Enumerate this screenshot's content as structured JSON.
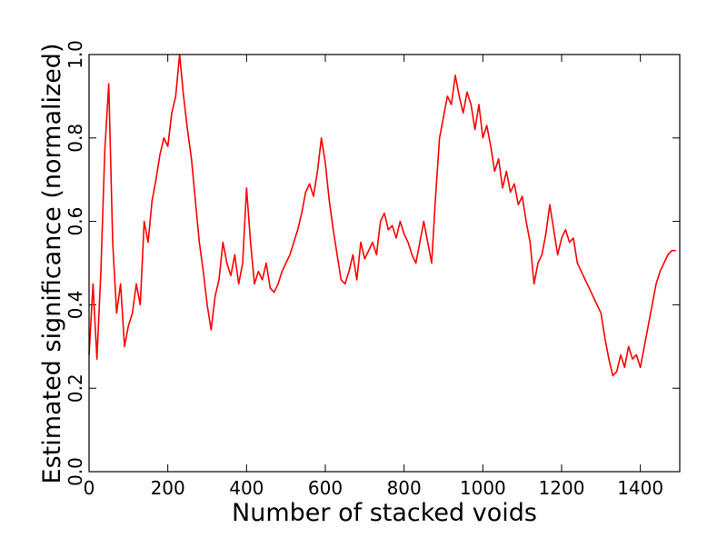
{
  "chart_data": {
    "type": "line",
    "xlabel": "Number of stacked voids",
    "ylabel": "Estimated significance (normalized)",
    "color": "#ff0000",
    "x": [
      0,
      10,
      20,
      30,
      40,
      50,
      60,
      70,
      80,
      90,
      100,
      110,
      120,
      130,
      140,
      150,
      160,
      170,
      180,
      190,
      200,
      210,
      220,
      230,
      240,
      250,
      260,
      270,
      280,
      290,
      300,
      310,
      320,
      330,
      340,
      350,
      360,
      370,
      380,
      390,
      400,
      410,
      420,
      430,
      440,
      450,
      460,
      470,
      480,
      490,
      500,
      510,
      520,
      530,
      540,
      550,
      560,
      570,
      580,
      590,
      600,
      610,
      620,
      630,
      640,
      650,
      660,
      670,
      680,
      690,
      700,
      710,
      720,
      730,
      740,
      750,
      760,
      770,
      780,
      790,
      800,
      810,
      820,
      830,
      840,
      850,
      860,
      870,
      880,
      890,
      900,
      910,
      920,
      930,
      940,
      950,
      960,
      970,
      980,
      990,
      1000,
      1010,
      1020,
      1030,
      1040,
      1050,
      1060,
      1070,
      1080,
      1090,
      1100,
      1110,
      1120,
      1130,
      1140,
      1150,
      1160,
      1170,
      1180,
      1190,
      1200,
      1210,
      1220,
      1230,
      1240,
      1250,
      1260,
      1270,
      1280,
      1290,
      1300,
      1310,
      1320,
      1330,
      1340,
      1350,
      1360,
      1370,
      1380,
      1390,
      1400,
      1410,
      1420,
      1430,
      1440,
      1450,
      1460,
      1470,
      1480,
      1490
    ],
    "values": [
      0.28,
      0.45,
      0.27,
      0.48,
      0.77,
      0.93,
      0.55,
      0.38,
      0.45,
      0.3,
      0.35,
      0.38,
      0.45,
      0.4,
      0.6,
      0.55,
      0.65,
      0.7,
      0.76,
      0.8,
      0.78,
      0.86,
      0.9,
      1.0,
      0.9,
      0.82,
      0.75,
      0.65,
      0.55,
      0.48,
      0.4,
      0.34,
      0.42,
      0.46,
      0.55,
      0.5,
      0.47,
      0.52,
      0.45,
      0.5,
      0.68,
      0.55,
      0.45,
      0.48,
      0.46,
      0.5,
      0.44,
      0.43,
      0.45,
      0.48,
      0.5,
      0.52,
      0.55,
      0.58,
      0.62,
      0.67,
      0.69,
      0.66,
      0.72,
      0.8,
      0.74,
      0.65,
      0.58,
      0.52,
      0.46,
      0.45,
      0.48,
      0.52,
      0.46,
      0.55,
      0.51,
      0.53,
      0.55,
      0.52,
      0.6,
      0.62,
      0.58,
      0.59,
      0.56,
      0.6,
      0.57,
      0.55,
      0.52,
      0.5,
      0.55,
      0.6,
      0.55,
      0.5,
      0.66,
      0.8,
      0.85,
      0.9,
      0.88,
      0.95,
      0.9,
      0.86,
      0.91,
      0.88,
      0.82,
      0.88,
      0.8,
      0.83,
      0.78,
      0.72,
      0.75,
      0.68,
      0.72,
      0.67,
      0.69,
      0.64,
      0.66,
      0.6,
      0.55,
      0.45,
      0.5,
      0.52,
      0.57,
      0.64,
      0.58,
      0.52,
      0.56,
      0.58,
      0.55,
      0.56,
      0.5,
      0.48,
      0.46,
      0.44,
      0.42,
      0.4,
      0.38,
      0.32,
      0.27,
      0.23,
      0.24,
      0.28,
      0.25,
      0.3,
      0.27,
      0.28,
      0.25,
      0.3,
      0.35,
      0.4,
      0.45,
      0.48,
      0.5,
      0.52,
      0.53,
      0.53
    ],
    "xlim": [
      0,
      1500
    ],
    "ylim": [
      0,
      1
    ],
    "xticks": [
      0,
      200,
      400,
      600,
      800,
      1000,
      1200,
      1400
    ],
    "yticks": [
      {
        "value": 0,
        "label": "0.0"
      },
      0.2,
      0.4,
      0.6,
      0.8,
      {
        "value": 1,
        "label": "1.0"
      }
    ]
  }
}
